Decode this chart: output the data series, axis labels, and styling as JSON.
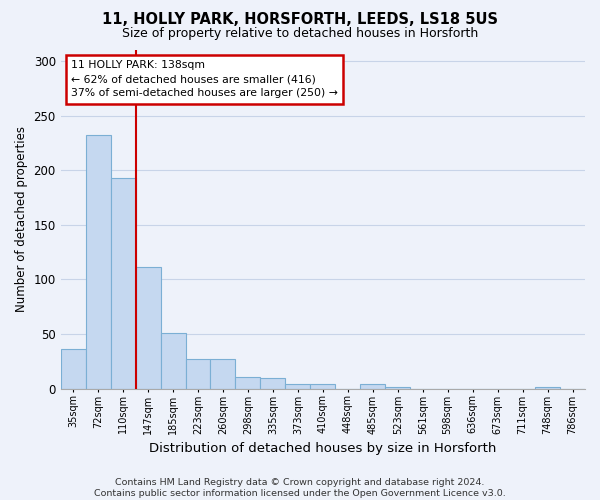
{
  "title": "11, HOLLY PARK, HORSFORTH, LEEDS, LS18 5US",
  "subtitle": "Size of property relative to detached houses in Horsforth",
  "xlabel": "Distribution of detached houses by size in Horsforth",
  "ylabel": "Number of detached properties",
  "categories": [
    "35sqm",
    "72sqm",
    "110sqm",
    "147sqm",
    "185sqm",
    "223sqm",
    "260sqm",
    "298sqm",
    "335sqm",
    "373sqm",
    "410sqm",
    "448sqm",
    "485sqm",
    "523sqm",
    "561sqm",
    "598sqm",
    "636sqm",
    "673sqm",
    "711sqm",
    "748sqm",
    "786sqm"
  ],
  "values": [
    36,
    232,
    193,
    111,
    51,
    27,
    27,
    11,
    10,
    4,
    4,
    0,
    4,
    2,
    0,
    0,
    0,
    0,
    0,
    2,
    0
  ],
  "bar_color": "#c5d8f0",
  "bar_edge_color": "#7bafd4",
  "grid_color": "#c8d4e8",
  "background_color": "#eef2fa",
  "property_line_color": "#cc0000",
  "annotation_text": "11 HOLLY PARK: 138sqm\n← 62% of detached houses are smaller (416)\n37% of semi-detached houses are larger (250) →",
  "annotation_box_facecolor": "#ffffff",
  "annotation_box_edgecolor": "#cc0000",
  "footer_text": "Contains HM Land Registry data © Crown copyright and database right 2024.\nContains public sector information licensed under the Open Government Licence v3.0.",
  "ylim": [
    0,
    310
  ],
  "yticks": [
    0,
    50,
    100,
    150,
    200,
    250,
    300
  ]
}
